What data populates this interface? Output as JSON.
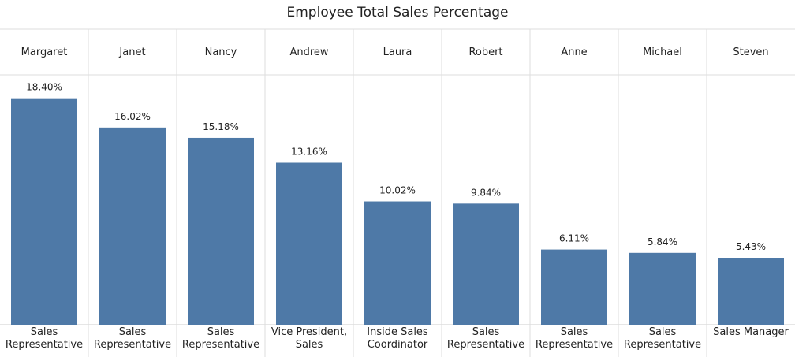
{
  "chart_data": {
    "type": "bar",
    "title": "Employee Total Sales Percentage",
    "categories": [
      "Margaret",
      "Janet",
      "Nancy",
      "Andrew",
      "Laura",
      "Robert",
      "Anne",
      "Michael",
      "Steven"
    ],
    "titles": [
      "Sales Representative",
      "Sales Representative",
      "Sales Representative",
      "Vice President, Sales",
      "Inside Sales Coordinator",
      "Sales Representative",
      "Sales Representative",
      "Sales Representative",
      "Sales Manager"
    ],
    "values": [
      18.4,
      16.02,
      15.18,
      13.16,
      10.02,
      9.84,
      6.11,
      5.84,
      5.43
    ],
    "value_labels": [
      "18.40%",
      "16.02%",
      "15.18%",
      "13.16%",
      "10.02%",
      "9.84%",
      "6.11%",
      "5.84%",
      "5.43%"
    ],
    "color": "#4e79a7",
    "ylim": [
      0,
      20.3
    ]
  }
}
